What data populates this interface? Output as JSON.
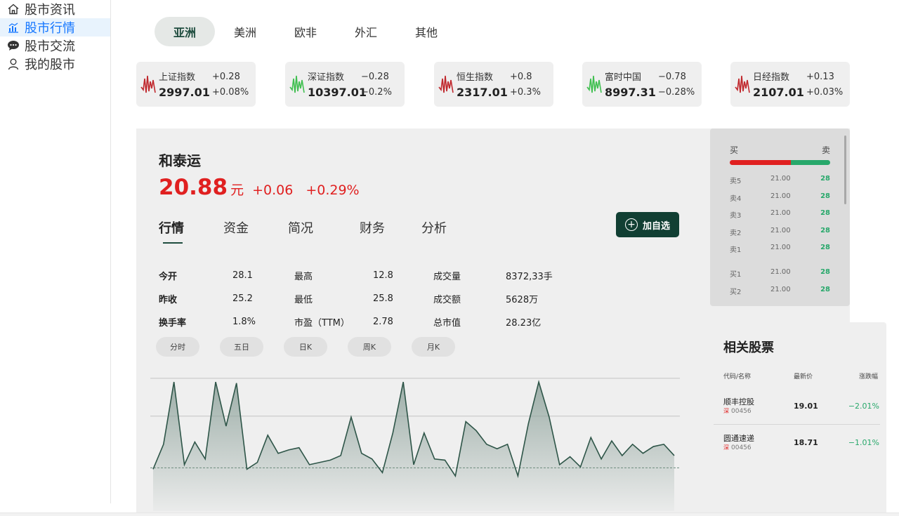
{
  "sidebar": {
    "items": [
      {
        "label": "股市资讯",
        "icon": "home-icon",
        "active": false
      },
      {
        "label": "股市行情",
        "icon": "chart-icon",
        "active": true
      },
      {
        "label": "股市交流",
        "icon": "chat-icon",
        "active": false
      },
      {
        "label": "我的股市",
        "icon": "user-icon",
        "active": false
      }
    ]
  },
  "regions": [
    {
      "label": "亚洲",
      "active": true
    },
    {
      "label": "美洲",
      "active": false
    },
    {
      "label": "欧非",
      "active": false
    },
    {
      "label": "外汇",
      "active": false
    },
    {
      "label": "其他",
      "active": false
    }
  ],
  "indices": [
    {
      "name": "上证指数",
      "price": "2997.01",
      "change": "+0.28",
      "pct": "+0.08%",
      "trend": "up"
    },
    {
      "name": "深证指数",
      "price": "10397.01",
      "change": "−0.28",
      "pct": "−0.2%",
      "trend": "down"
    },
    {
      "name": "恒生指数",
      "price": "2317.01",
      "change": "+0.8",
      "pct": "+0.3%",
      "trend": "up"
    },
    {
      "name": "富时中国",
      "price": "8997.31",
      "change": "−0.78",
      "pct": "−0.28%",
      "trend": "down"
    },
    {
      "name": "日经指数",
      "price": "2107.01",
      "change": "+0.13",
      "pct": "+0.03%",
      "trend": "up"
    }
  ],
  "stock": {
    "name": "和泰运",
    "price": "20.88",
    "unit": "元",
    "change": "+0.06",
    "pct": "+0.29%"
  },
  "detail_tabs": [
    {
      "label": "行情",
      "active": true
    },
    {
      "label": "资金",
      "active": false
    },
    {
      "label": "简况",
      "active": false
    },
    {
      "label": "财务",
      "active": false
    },
    {
      "label": "分析",
      "active": false
    }
  ],
  "add_button": {
    "label": "加自选",
    "icon": "plus-circle-icon"
  },
  "stats": [
    [
      {
        "label": "今开",
        "value": "28.1"
      },
      {
        "label": "最高",
        "value": "12.8"
      },
      {
        "label": "成交量",
        "value": "8372,33手"
      }
    ],
    [
      {
        "label": "昨收",
        "value": "25.2"
      },
      {
        "label": "最低",
        "value": "25.8"
      },
      {
        "label": "成交额",
        "value": "5628万"
      }
    ],
    [
      {
        "label": "换手率",
        "value": "1.8%"
      },
      {
        "label": "市盈（TTM）",
        "value": "2.78"
      },
      {
        "label": "总市值",
        "value": "28.23亿"
      }
    ]
  ],
  "periods": [
    "分时",
    "五日",
    "日K",
    "周K",
    "月K"
  ],
  "chart_data": {
    "type": "area",
    "x": [
      0,
      1,
      2,
      3,
      4,
      5,
      6,
      7,
      8,
      9,
      10,
      11,
      12,
      13,
      14,
      15,
      16,
      17,
      18,
      19,
      20,
      21,
      22,
      23,
      24,
      25,
      26,
      27,
      28,
      29,
      30,
      31,
      32,
      33,
      34,
      35,
      36,
      37,
      38,
      39,
      40,
      41,
      42,
      43,
      44,
      45,
      46,
      47,
      48,
      49,
      50
    ],
    "values": [
      6,
      28,
      83,
      10,
      30,
      15,
      83,
      44,
      82,
      6,
      12,
      36,
      20,
      23,
      25,
      10,
      12,
      14,
      18,
      52,
      20,
      15,
      3,
      38,
      83,
      10,
      38,
      15,
      14,
      0,
      48,
      40,
      28,
      24,
      28,
      0,
      46,
      83,
      52,
      10,
      17,
      8,
      34,
      15,
      31,
      18,
      28,
      20,
      26,
      28,
      18
    ],
    "ylim": [
      0,
      88
    ],
    "gridlines": true,
    "line_color": "#2e5548",
    "fill_color": "#8fa39c"
  },
  "order_book": {
    "buy_label": "买",
    "sell_label": "卖",
    "buy_ratio": 0.61,
    "asks": [
      {
        "level": "卖5",
        "price": "21.00",
        "volume": "28"
      },
      {
        "level": "卖4",
        "price": "21.00",
        "volume": "28"
      },
      {
        "level": "卖3",
        "price": "21.00",
        "volume": "28"
      },
      {
        "level": "卖2",
        "price": "21.00",
        "volume": "28"
      },
      {
        "level": "卖1",
        "price": "21.00",
        "volume": "28"
      }
    ],
    "bids": [
      {
        "level": "买1",
        "price": "21.00",
        "volume": "28"
      },
      {
        "level": "买2",
        "price": "21.00",
        "volume": "28"
      }
    ]
  },
  "related": {
    "title": "相关股票",
    "headers": {
      "code": "代码/名称",
      "price": "最新价",
      "change": "涨跌幅"
    },
    "rows": [
      {
        "name": "顺丰控股",
        "tag": "深",
        "code": "00456",
        "price": "19.01",
        "change": "−2.01%"
      },
      {
        "name": "圆通速递",
        "tag": "深",
        "code": "00456",
        "price": "18.71",
        "change": "−1.01%"
      }
    ]
  },
  "colors": {
    "up": "#e02020",
    "down": "#28a86b",
    "accent": "#113f33",
    "link": "#1677ff"
  }
}
